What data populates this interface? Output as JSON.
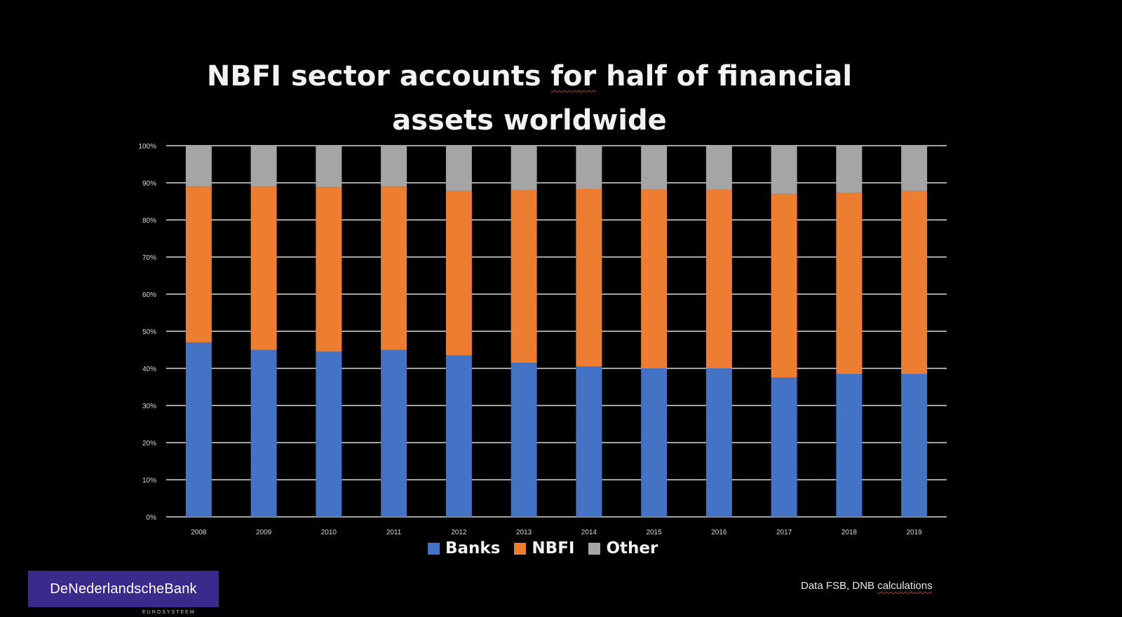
{
  "chart_data": {
    "type": "bar",
    "stacked": true,
    "title_line1": "NBFI sector accounts ",
    "title_underlined": "for",
    "title_line1_rest": " half of financial",
    "title_line2": "assets worldwide",
    "categories": [
      "2008",
      "2009",
      "2010",
      "2011",
      "2012",
      "2013",
      "2014",
      "2015",
      "2016",
      "2017",
      "2018",
      "2019"
    ],
    "series": [
      {
        "name": "Banks",
        "color": "#4472c4",
        "values": [
          47,
          45,
          44.5,
          45,
          43.5,
          41.5,
          40.5,
          40,
          40,
          37.5,
          38.5,
          38.5
        ]
      },
      {
        "name": "NBFI",
        "color": "#ed7d31",
        "values": [
          42,
          44,
          44.3,
          44,
          44.3,
          46.5,
          47.8,
          48.2,
          48.2,
          49.5,
          48.7,
          49.3
        ]
      },
      {
        "name": "Other",
        "color": "#a5a5a5",
        "values": [
          11,
          11,
          11.2,
          11,
          12.2,
          12,
          11.7,
          11.8,
          11.8,
          13,
          12.8,
          12.2
        ]
      }
    ],
    "yticks": [
      "0%",
      "10%",
      "20%",
      "30%",
      "40%",
      "50%",
      "60%",
      "70%",
      "80%",
      "90%",
      "100%"
    ],
    "ylim": [
      0,
      100
    ],
    "grid": true,
    "legend_position": "bottom"
  },
  "source": {
    "prefix": "Data FSB, DNB ",
    "underlined": "calculations"
  },
  "logo": {
    "text": "DeNederlandscheBank",
    "subtext": "EUROSYSTEEM"
  },
  "colors": {
    "background": "#000000",
    "gridline": "#d9d9d9",
    "logo_bg": "#3b2a8c"
  }
}
